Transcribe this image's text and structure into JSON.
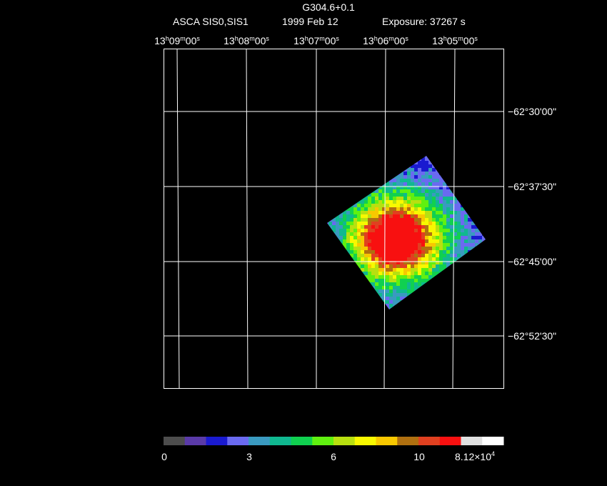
{
  "header": {
    "title": "G304.6+0.1",
    "instrument": "ASCA SIS0,SIS1",
    "date": "1999 Feb 12",
    "exposure": "Exposure: 37267 s"
  },
  "ra_labels": [
    [
      "13",
      "h",
      "09",
      "m",
      "00",
      "s"
    ],
    [
      "13",
      "h",
      "08",
      "m",
      "00",
      "s"
    ],
    [
      "13",
      "h",
      "07",
      "m",
      "00",
      "s"
    ],
    [
      "13",
      "h",
      "06",
      "m",
      "00",
      "s"
    ],
    [
      "13",
      "h",
      "05",
      "m",
      "00",
      "s"
    ]
  ],
  "dec_labels": [
    "−62°30'00\"",
    "−62°37'30\"",
    "−62°45'00\"",
    "−62°52'30\""
  ],
  "colorbar": {
    "colors": [
      "#4d4d4d",
      "#5a3aa8",
      "#1a1ad0",
      "#6a6af0",
      "#3a9ac0",
      "#10b890",
      "#10d050",
      "#60f010",
      "#b8e010",
      "#f8f800",
      "#f8c800",
      "#b07010",
      "#e04020",
      "#f81010",
      "#e0e0e0",
      "#ffffff"
    ],
    "labels": [
      "0",
      "3",
      "6",
      "10"
    ],
    "max_label": {
      "mantissa": "8.12×10",
      "exponent": "4"
    }
  }
}
